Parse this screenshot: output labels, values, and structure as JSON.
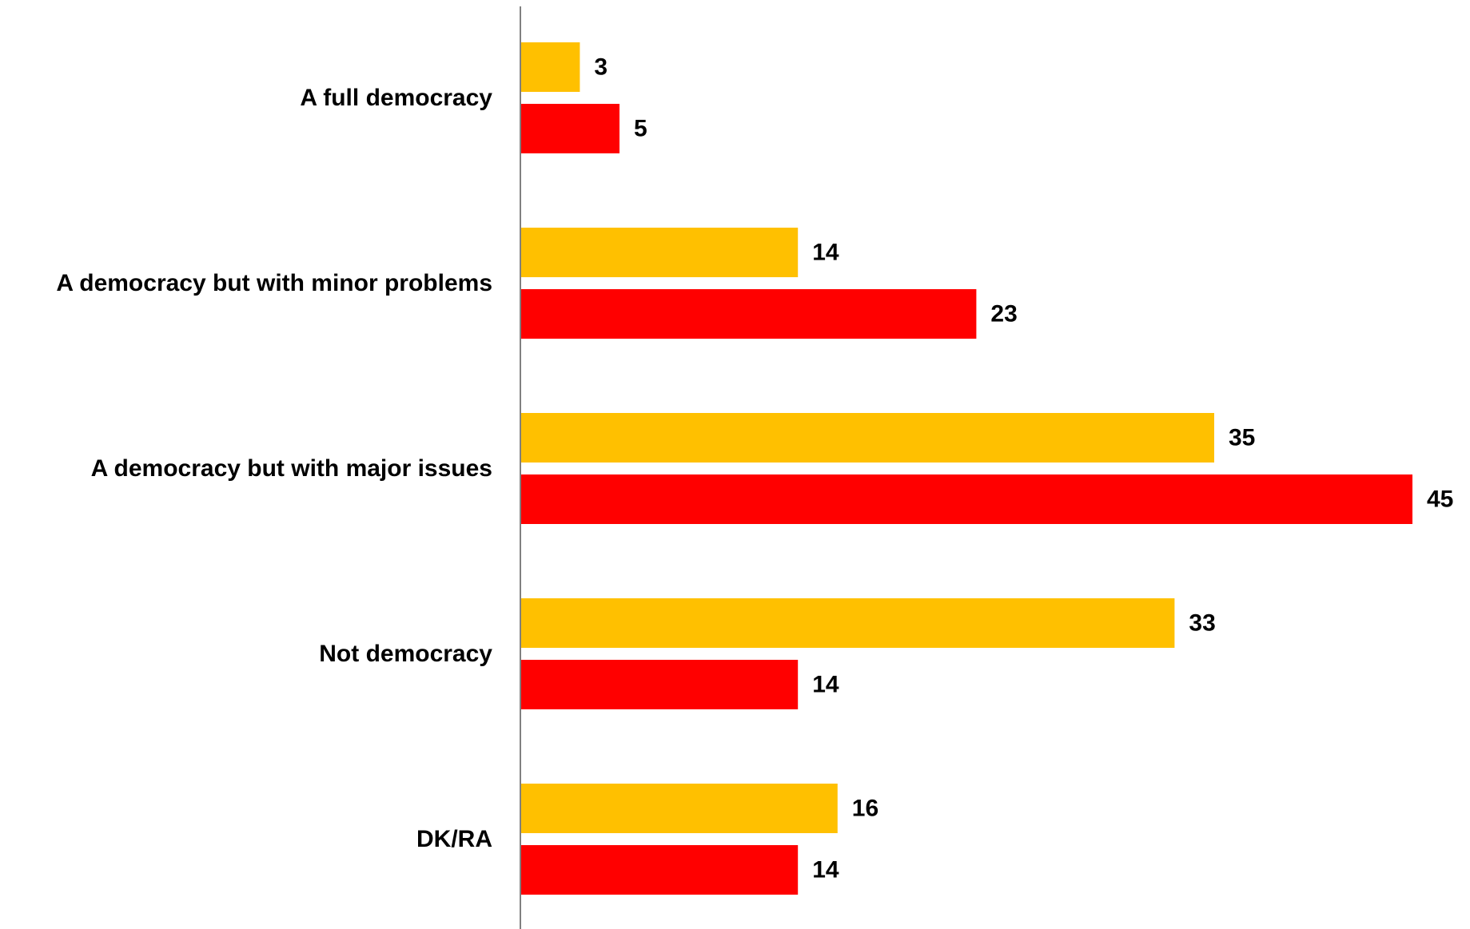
{
  "chart_data": {
    "type": "bar",
    "orientation": "horizontal",
    "title": "",
    "xlabel": "",
    "ylabel": "",
    "categories": [
      "A full democracy",
      "A democracy but with minor problems",
      "A democracy but with major issues",
      "Not democracy",
      "DK/RA"
    ],
    "series": [
      {
        "color": "#FFC000",
        "values": [
          3,
          14,
          35,
          33,
          16
        ]
      },
      {
        "color": "#FF0000",
        "values": [
          5,
          23,
          45,
          14,
          14
        ]
      }
    ],
    "xlim": [
      0,
      45
    ],
    "grid": false,
    "legend": "none",
    "data_labels": true,
    "axis_color": "#808080"
  }
}
